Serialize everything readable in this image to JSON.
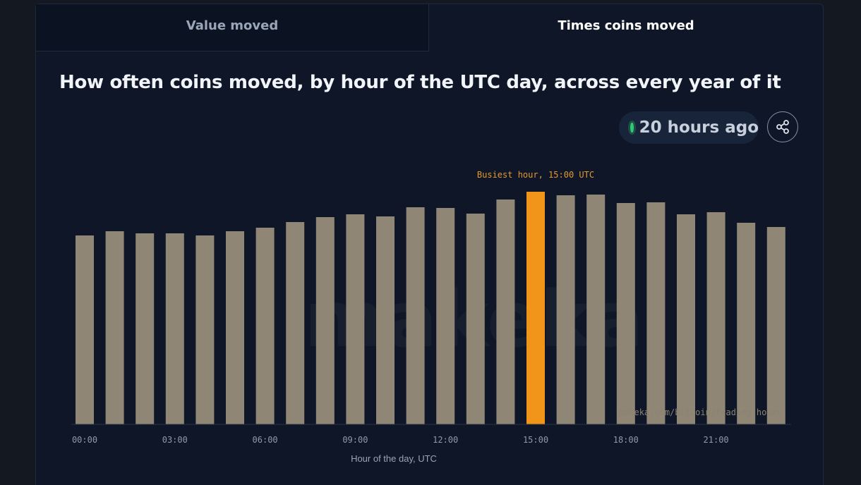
{
  "tabs": {
    "value_moved": "Value moved",
    "times_coins_moved": "Times coins moved"
  },
  "status": {
    "text": "20 hours ago",
    "dot_color": "#2ecc71"
  },
  "share": {
    "icon": "share-icon"
  },
  "watermark": {
    "url": "makeka.com/bitcoin/trading-hours",
    "logo": "makeka"
  },
  "chart_data": {
    "type": "bar",
    "title": "How often coins moved, by hour of the UTC day, across every year of it",
    "xlabel": "Hour of the day, UTC",
    "ylabel": "",
    "categories": [
      "00:00",
      "01:00",
      "02:00",
      "03:00",
      "04:00",
      "05:00",
      "06:00",
      "07:00",
      "08:00",
      "09:00",
      "10:00",
      "11:00",
      "12:00",
      "13:00",
      "14:00",
      "15:00",
      "16:00",
      "17:00",
      "18:00",
      "19:00",
      "20:00",
      "21:00",
      "22:00",
      "23:00"
    ],
    "tick_labels": [
      "00:00",
      "03:00",
      "06:00",
      "09:00",
      "12:00",
      "15:00",
      "18:00",
      "21:00"
    ],
    "values": [
      268,
      274,
      271,
      271,
      268,
      274,
      279,
      287,
      294,
      298,
      295,
      308,
      307,
      299,
      319,
      330,
      325,
      326,
      314,
      315,
      298,
      301,
      286,
      280
    ],
    "ylim": [
      0,
      330
    ],
    "highlight": {
      "category": "15:00",
      "label": "Busiest hour, 15:00 UTC"
    },
    "bar_color": "#8f8676",
    "highlight_color": "#f0941a",
    "grid": false
  }
}
